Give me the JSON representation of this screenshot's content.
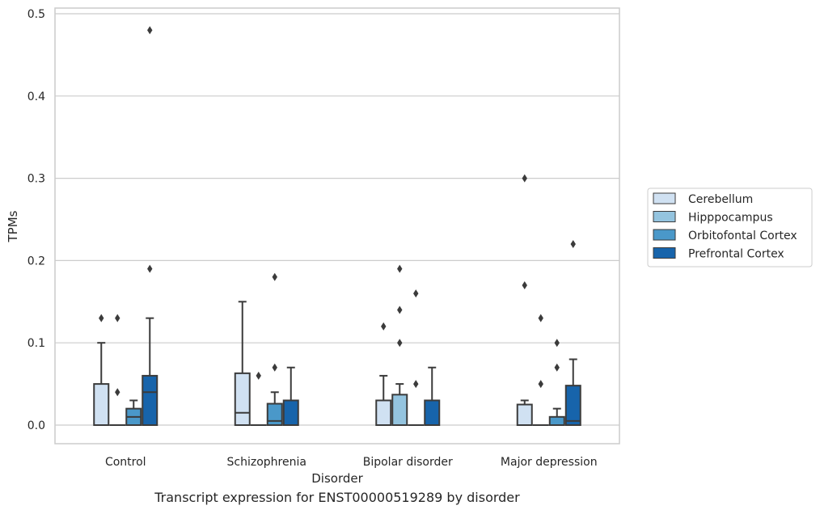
{
  "caption": "Transcript expression for ENST00000519289 by disorder",
  "chart_data": {
    "type": "box",
    "xlabel": "Disorder",
    "ylabel": "TPMs",
    "ylim": [
      -0.023,
      0.505
    ],
    "yticks": [
      "0.0",
      "0.1",
      "0.2",
      "0.3",
      "0.4",
      "0.5"
    ],
    "categories": [
      "Control",
      "Schizophrenia",
      "Bipolar disorder",
      "Major depression"
    ],
    "grid": true,
    "legend_position": "right",
    "series": [
      {
        "name": "Cerebellum",
        "color": "#d0e1f2",
        "boxes": [
          {
            "q1": 0.0,
            "median": 0.0,
            "q3": 0.05,
            "whisker_low": 0.0,
            "whisker_high": 0.1,
            "outliers": [
              0.13
            ]
          },
          {
            "q1": 0.0,
            "median": 0.015,
            "q3": 0.063,
            "whisker_low": 0.0,
            "whisker_high": 0.15,
            "outliers": []
          },
          {
            "q1": 0.0,
            "median": 0.0,
            "q3": 0.03,
            "whisker_low": 0.0,
            "whisker_high": 0.06,
            "outliers": [
              0.12
            ]
          },
          {
            "q1": 0.0,
            "median": 0.0,
            "q3": 0.025,
            "whisker_low": 0.0,
            "whisker_high": 0.03,
            "outliers": [
              0.3,
              0.17
            ]
          }
        ]
      },
      {
        "name": "Hipppocampus",
        "color": "#94c4df",
        "boxes": [
          {
            "q1": 0.0,
            "median": 0.0,
            "q3": 0.0,
            "whisker_low": 0.0,
            "whisker_high": 0.0,
            "outliers": [
              0.13,
              0.04
            ]
          },
          {
            "q1": 0.0,
            "median": 0.0,
            "q3": 0.0,
            "whisker_low": 0.0,
            "whisker_high": 0.0,
            "outliers": [
              0.06
            ]
          },
          {
            "q1": 0.0,
            "median": 0.0,
            "q3": 0.037,
            "whisker_low": 0.0,
            "whisker_high": 0.05,
            "outliers": [
              0.19,
              0.14,
              0.1
            ]
          },
          {
            "q1": 0.0,
            "median": 0.0,
            "q3": 0.0,
            "whisker_low": 0.0,
            "whisker_high": 0.0,
            "outliers": [
              0.13,
              0.05
            ]
          }
        ]
      },
      {
        "name": "Orbitofontal Cortex",
        "color": "#4a98c9",
        "boxes": [
          {
            "q1": 0.0,
            "median": 0.01,
            "q3": 0.02,
            "whisker_low": 0.0,
            "whisker_high": 0.03,
            "outliers": []
          },
          {
            "q1": 0.0,
            "median": 0.005,
            "q3": 0.026,
            "whisker_low": 0.0,
            "whisker_high": 0.04,
            "outliers": [
              0.18,
              0.07
            ]
          },
          {
            "q1": 0.0,
            "median": 0.0,
            "q3": 0.0,
            "whisker_low": 0.0,
            "whisker_high": 0.0,
            "outliers": [
              0.16,
              0.05
            ]
          },
          {
            "q1": 0.0,
            "median": 0.0,
            "q3": 0.01,
            "whisker_low": 0.0,
            "whisker_high": 0.02,
            "outliers": [
              0.1,
              0.07
            ]
          }
        ]
      },
      {
        "name": "Prefrontal Cortex",
        "color": "#1764ab",
        "boxes": [
          {
            "q1": 0.0,
            "median": 0.04,
            "q3": 0.06,
            "whisker_low": 0.0,
            "whisker_high": 0.13,
            "outliers": [
              0.48,
              0.19
            ]
          },
          {
            "q1": 0.0,
            "median": 0.0,
            "q3": 0.03,
            "whisker_low": 0.0,
            "whisker_high": 0.07,
            "outliers": []
          },
          {
            "q1": 0.0,
            "median": 0.0,
            "q3": 0.03,
            "whisker_low": 0.0,
            "whisker_high": 0.07,
            "outliers": []
          },
          {
            "q1": 0.0,
            "median": 0.005,
            "q3": 0.048,
            "whisker_low": 0.0,
            "whisker_high": 0.08,
            "outliers": [
              0.22
            ]
          }
        ]
      }
    ]
  }
}
